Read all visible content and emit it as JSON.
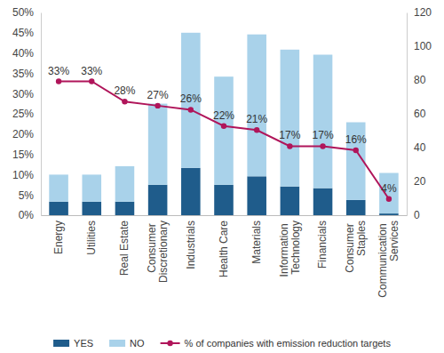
{
  "chart_data": {
    "type": "bar",
    "categories": [
      "Energy",
      "Utilities",
      "Real Estate",
      "Consumer Discretionary",
      "Industrials",
      "Health Care",
      "Materials",
      "Information Technology",
      "Financials",
      "Consumer Staples",
      "Communication Services"
    ],
    "series": [
      {
        "name": "YES",
        "type": "bar",
        "axis": "y2",
        "color": "#1f5c8b",
        "values": [
          8,
          8,
          8,
          18,
          28,
          18,
          23,
          17,
          16,
          9,
          1
        ]
      },
      {
        "name": "NO",
        "type": "bar",
        "axis": "y2",
        "color": "#a9d2ea",
        "values": [
          16,
          16,
          21,
          48,
          80,
          64,
          84,
          81,
          79,
          46,
          24
        ]
      },
      {
        "name": "% of companies with emission reduction targets",
        "type": "line",
        "color": "#b0155a",
        "marker": "circle",
        "data_labels": true,
        "values": [
          33,
          33,
          28,
          27,
          26,
          22,
          21,
          17,
          17,
          16,
          4
        ],
        "value_labels": [
          "33%",
          "33%",
          "28%",
          "27%",
          "26%",
          "22%",
          "21%",
          "17%",
          "17%",
          "16%",
          "4%"
        ]
      }
    ],
    "stacked": true,
    "ylim": [
      0,
      50
    ],
    "yticks": [
      {
        "value": 0,
        "label": "0%"
      },
      {
        "value": 5,
        "label": "5%"
      },
      {
        "value": 10,
        "label": "10%"
      },
      {
        "value": 15,
        "label": "15%"
      },
      {
        "value": 20,
        "label": "20%"
      },
      {
        "value": 25,
        "label": "25%"
      },
      {
        "value": 30,
        "label": "30%"
      },
      {
        "value": 35,
        "label": "35%"
      },
      {
        "value": 40,
        "label": "40%"
      },
      {
        "value": 45,
        "label": "45%"
      },
      {
        "value": 50,
        "label": "50%"
      }
    ],
    "y2lim": [
      0,
      120
    ],
    "y2ticks": [
      0,
      20,
      40,
      60,
      80,
      100,
      120
    ],
    "legend": "bottom",
    "grid": false
  }
}
